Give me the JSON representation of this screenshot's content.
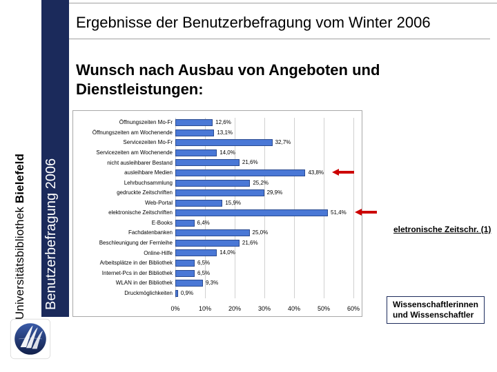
{
  "brand_vertical_text": "Universitätsbibliothek Bielefeld",
  "header": {
    "title": "Ergebnisse der Benutzerbefragung vom Winter 2006"
  },
  "sidebar": {
    "vertical_text": "Benutzerbefragung 2006",
    "bg": "#1b2a5b"
  },
  "subtitle": "Wunsch nach Ausbau von Angeboten und Dienstleistungen:",
  "chart": {
    "type": "horizontal-bar",
    "bar_color": "#4a78d6",
    "bar_border_color": "#2a4a90",
    "grid_color": "#d0d0d0",
    "background": "#ffffff",
    "xlim": [
      0,
      60
    ],
    "xtick_step": 10,
    "xtick_labels": [
      "0%",
      "10%",
      "20%",
      "30%",
      "40%",
      "50%",
      "60%"
    ],
    "categories": [
      "Öffnungszeiten Mo-Fr",
      "Öffnungszeiten am Wochenende",
      "Servicezeiten Mo-Fr",
      "Servicezeiten am Wochenende",
      "nicht ausleihbarer Bestand",
      "ausleihbare Medien",
      "Lehrbuchsammlung",
      "gedruckte Zeitschriften",
      "Web-Portal",
      "elektronische Zeitschriften",
      "E-Books",
      "Fachdatenbanken",
      "Beschleunigung der Fernleihe",
      "Online-Hilfe",
      "Arbeitsplätze in der Bibliothek",
      "Internet-Pcs in der Bibliothek",
      "WLAN in der Bibliothek",
      "Druckmöglichkeiten"
    ],
    "values": [
      12.6,
      13.1,
      32.7,
      14.0,
      21.6,
      43.8,
      25.2,
      29.9,
      15.9,
      51.4,
      6.4,
      25.0,
      21.6,
      14.0,
      6.5,
      6.5,
      9.3,
      0.9
    ],
    "value_labels": [
      "12,6%",
      "13,1%",
      "32,7%",
      "14,0%",
      "21,6%",
      "43,8%",
      "25,2%",
      "29,9%",
      "15,9%",
      "51,4%",
      "6,4%",
      "25,0%",
      "21,6%",
      "14,0%",
      "6,5%",
      "6,5%",
      "9,3%",
      "0,9%"
    ],
    "label_fontsize": 8,
    "value_fontsize": 8
  },
  "annotations": {
    "arrow1_target_index": 5,
    "arrow2_target_index": 9,
    "callout1": "eletronische Zeitschr. (1)",
    "callout2_line1": "Wissenschaftlerinnen",
    "callout2_line2": "und Wissenschaftler",
    "arrow_color": "#c00000"
  },
  "logo": {
    "bg": "#ffffff",
    "ring": "#1b2a5b",
    "leaves": "#1b2a5b"
  }
}
